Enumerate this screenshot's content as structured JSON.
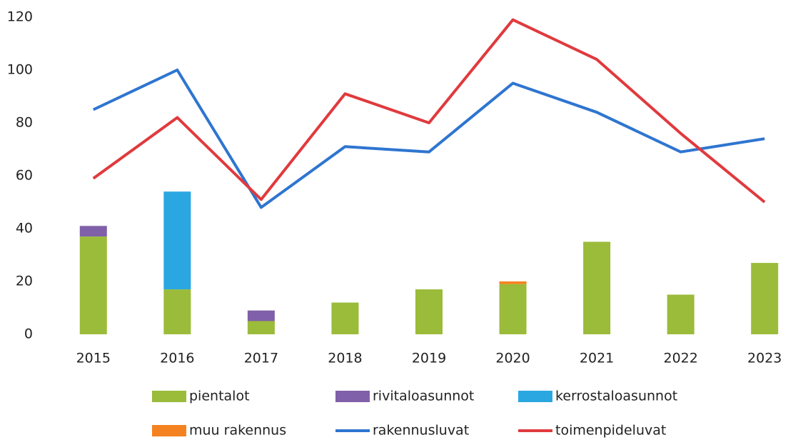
{
  "chart_data": {
    "type": "bar",
    "categories": [
      "2015",
      "2016",
      "2017",
      "2018",
      "2019",
      "2020",
      "2021",
      "2022",
      "2023"
    ],
    "series": [
      {
        "name": "pientalot",
        "type": "bar",
        "color": "#9bbb3a",
        "values": [
          37,
          17,
          5,
          12,
          17,
          19,
          35,
          15,
          27
        ]
      },
      {
        "name": "rivitaloasunnot",
        "type": "bar",
        "color": "#8060a8",
        "values": [
          4,
          0,
          4,
          0,
          0,
          0,
          0,
          0,
          0
        ]
      },
      {
        "name": "kerrostaloasunnot",
        "type": "bar",
        "color": "#2aa7e0",
        "values": [
          0,
          37,
          0,
          0,
          0,
          0,
          0,
          0,
          0
        ]
      },
      {
        "name": "muu rakennus",
        "type": "bar",
        "color": "#f58220",
        "values": [
          0,
          0,
          0,
          0,
          0,
          1,
          0,
          0,
          0
        ]
      },
      {
        "name": "rakennusluvat",
        "type": "line",
        "color": "#2e75d0",
        "values": [
          85,
          100,
          48,
          71,
          69,
          95,
          84,
          69,
          74
        ]
      },
      {
        "name": "toimenpideluvat",
        "type": "line",
        "color": "#e03a3e",
        "values": [
          59,
          82,
          51,
          91,
          80,
          119,
          104,
          76,
          50
        ]
      }
    ],
    "ylim": [
      0,
      120
    ],
    "yticks": [
      0,
      20,
      40,
      60,
      80,
      100,
      120
    ],
    "grid": false
  }
}
